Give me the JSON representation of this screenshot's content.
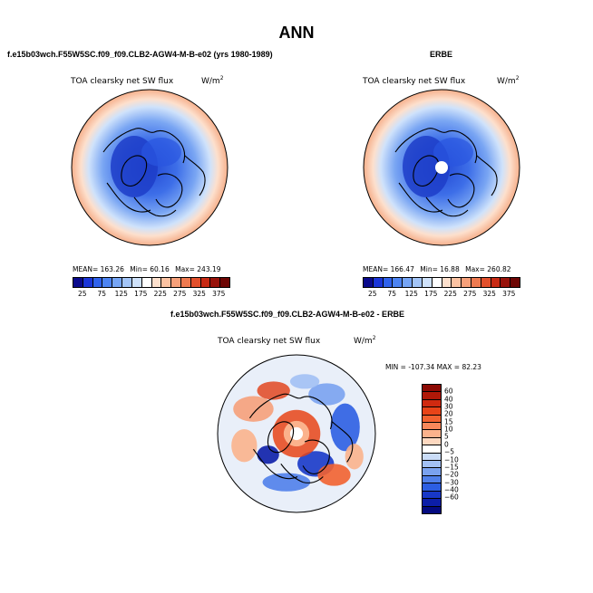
{
  "figure": {
    "title": "ANN",
    "panels": [
      {
        "title": "f.e15b03wch.F55W5SC.f09_f09.CLB2-AGW4-M-B-e02 (yrs 1980-1989)",
        "field": "TOA clearsky net SW flux",
        "units": "W/m",
        "units_exp": "2",
        "mean": "MEAN=  163.26",
        "min": "Min=   60.16",
        "max": "Max=  243.19",
        "polar_hole": false
      },
      {
        "title": "ERBE",
        "field": "TOA clearsky net SW flux",
        "units": "W/m",
        "units_exp": "2",
        "mean": "MEAN=  166.47",
        "min": "Min=   16.88",
        "max": "Max=  260.82",
        "polar_hole": true
      }
    ],
    "diff_panel": {
      "title": "f.e15b03wch.F55W5SC.f09_f09.CLB2-AGW4-M-B-e02 - ERBE",
      "field": "TOA clearsky net SW flux",
      "units": "W/m",
      "units_exp": "2",
      "minmax": "MIN = -107.34  MAX =  82.23"
    },
    "abs_colorbar": {
      "labels": [
        "25",
        "75",
        "125",
        "175",
        "225",
        "275",
        "325",
        "375"
      ],
      "colors": [
        "#0a0a8c",
        "#1a35d8",
        "#2f62ec",
        "#4d84f2",
        "#76a5f5",
        "#a3c5f8",
        "#cfe2fb",
        "#ffffff",
        "#fde0cd",
        "#fbc2a2",
        "#f6a07a",
        "#ee7a50",
        "#e2502c",
        "#c82a14",
        "#98120a",
        "#6e0604"
      ]
    },
    "diff_colorbar": {
      "labels": [
        "60",
        "40",
        "30",
        "20",
        "15",
        "10",
        "5",
        "0",
        "−5",
        "−10",
        "−15",
        "−20",
        "−30",
        "−40",
        "−60"
      ],
      "colors": [
        "#8c0a04",
        "#b01808",
        "#d02a10",
        "#e84418",
        "#f26230",
        "#f8885a",
        "#fbb28c",
        "#fdd8c0",
        "#ffffff",
        "#cadcf8",
        "#a2c0f4",
        "#7aa2ef",
        "#5080ea",
        "#2c5ee2",
        "#1838c8",
        "#0c1ea8",
        "#040a80"
      ]
    }
  }
}
